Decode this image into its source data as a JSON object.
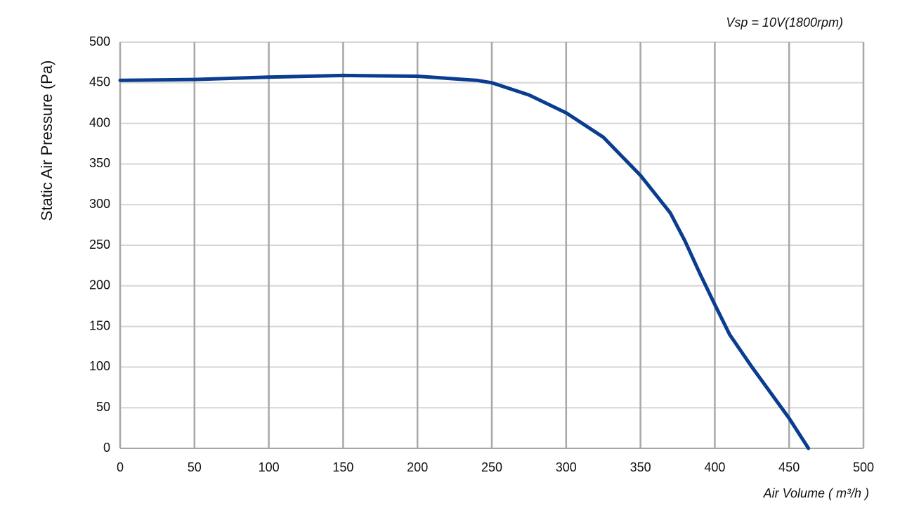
{
  "chart_data": {
    "type": "line",
    "title": "Vsp = 10V(1800rpm)",
    "x_label": "Air Volume ( m³/h )",
    "y_label": "Static Air Pressure  (Pa)",
    "x": [
      0,
      50,
      100,
      150,
      200,
      240,
      250,
      275,
      300,
      325,
      350,
      370,
      380,
      390,
      400,
      410,
      425,
      450,
      463
    ],
    "series": [
      {
        "name": "Vsp = 10V(1800rpm)",
        "color": "#0a3d8f",
        "values": [
          453,
          454,
          457,
          459,
          458,
          453,
          450,
          435,
          413,
          383,
          336,
          290,
          255,
          215,
          177,
          140,
          100,
          37,
          0
        ]
      }
    ],
    "xlim": [
      0,
      500
    ],
    "ylim": [
      0,
      500
    ],
    "xticks": [
      0,
      50,
      100,
      150,
      200,
      250,
      300,
      350,
      400,
      450,
      500
    ],
    "yticks": [
      0,
      50,
      100,
      150,
      200,
      250,
      300,
      350,
      400,
      450,
      500
    ],
    "grid": true
  }
}
